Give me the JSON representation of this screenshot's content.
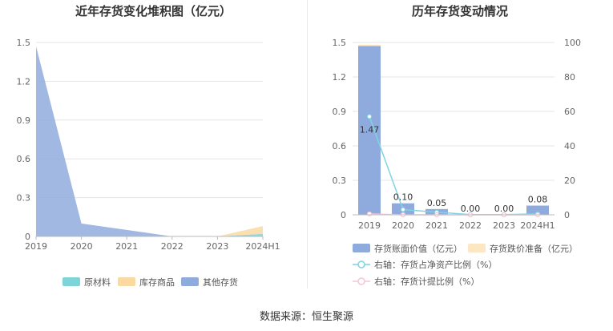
{
  "source_text": "数据来源：恒生聚源",
  "chart_data": [
    {
      "type": "area",
      "title": "近年存货变化堆积图（亿元）",
      "categories": [
        "2019",
        "2020",
        "2021",
        "2022",
        "2023",
        "2024H1"
      ],
      "ylim": [
        0,
        1.5
      ],
      "yticks": [
        "0",
        "0.3",
        "0.6",
        "0.9",
        "1.2",
        "1.5"
      ],
      "legend_position": "bottom",
      "series": [
        {
          "name": "原材料",
          "color": "#7fd4d8",
          "values": [
            0,
            0,
            0,
            0,
            0,
            0.02
          ]
        },
        {
          "name": "库存商品",
          "color": "#fbd9a0",
          "values": [
            0,
            0,
            0,
            0,
            0,
            0.06
          ]
        },
        {
          "name": "其他存货",
          "color": "#8fabdd",
          "values": [
            1.47,
            0.1,
            0.05,
            0.0,
            0.0,
            0.0
          ]
        }
      ]
    },
    {
      "type": "bar",
      "title": "历年存货变动情况",
      "categories": [
        "2019",
        "2020",
        "2021",
        "2022",
        "2023",
        "2024H1"
      ],
      "ylim": [
        0,
        1.5
      ],
      "yticks": [
        "0",
        "0.3",
        "0.6",
        "0.9",
        "1.2",
        "1.5"
      ],
      "y2lim": [
        0,
        100
      ],
      "y2ticks": [
        "0",
        "20",
        "40",
        "60",
        "80",
        "100"
      ],
      "legend_position": "bottom",
      "bar_series": [
        {
          "name": "存货账面价值（亿元）",
          "color": "#8fabdd",
          "values": [
            1.47,
            0.1,
            0.05,
            0.0,
            0.0,
            0.08
          ],
          "labels": [
            "1.47",
            "0.10",
            "0.05",
            "0.00",
            "0.00",
            "0.08"
          ]
        },
        {
          "name": "存货跌价准备（亿元）",
          "color": "#fde6c2",
          "values": [
            0.01,
            0,
            0,
            0,
            0,
            0
          ]
        }
      ],
      "line_series": [
        {
          "name": "右轴：存货占净资产比例（%）",
          "color": "#7fd4e0",
          "values": [
            57,
            3,
            1.5,
            0.1,
            0.1,
            0.5
          ]
        },
        {
          "name": "右轴：存货计提比例（%）",
          "color": "#f5c6d6",
          "values": [
            0.5,
            0,
            0,
            0,
            0,
            0
          ]
        }
      ]
    }
  ]
}
